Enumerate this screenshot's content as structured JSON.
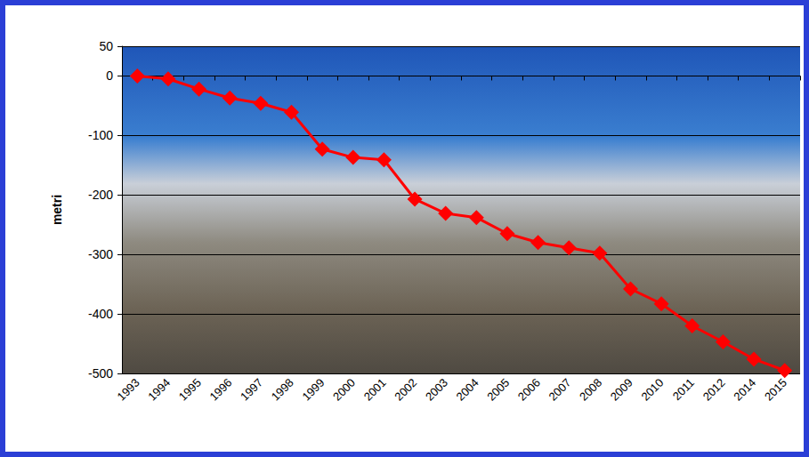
{
  "chart_data": {
    "type": "line",
    "y_label": "metri",
    "categories": [
      "1993",
      "1994",
      "1995",
      "1996",
      "1997",
      "1998",
      "1999",
      "2000",
      "2001",
      "2002",
      "2003",
      "2004",
      "2005",
      "2006",
      "2007",
      "2008",
      "2009",
      "2010",
      "2011",
      "2012",
      "2014",
      "2015"
    ],
    "values": [
      0,
      -5,
      -22,
      -37,
      -46,
      -61,
      -123,
      -137,
      -141,
      -207,
      -231,
      -238,
      -265,
      -280,
      -289,
      -298,
      -358,
      -383,
      -420,
      -447,
      -476,
      -495
    ],
    "color": "#ff0000",
    "marker": "diamond",
    "ylim": [
      -500,
      50
    ],
    "yticks": [
      -500,
      -400,
      -300,
      -200,
      -100,
      0
    ],
    "grid": true
  }
}
